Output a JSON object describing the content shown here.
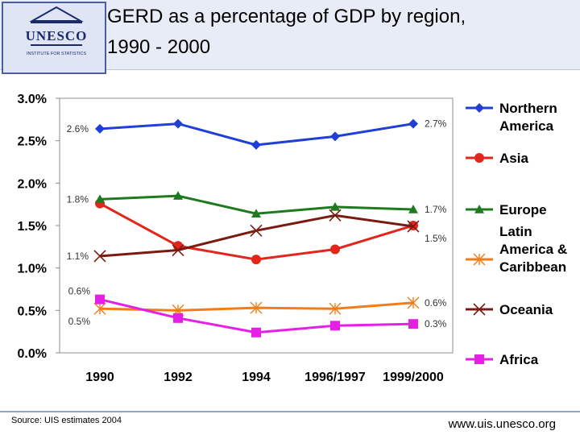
{
  "header": {
    "title_line1": "GERD as a percentage of GDP by region,",
    "title_line2": "1990 - 2000",
    "logo_text": "UNESCO",
    "logo_subtext": "INSTITUTE FOR STATISTICS"
  },
  "footer": {
    "source": "Source: UIS estimates 2004",
    "url": "www.uis.unesco.org"
  },
  "chart_data": {
    "type": "line",
    "title": "GERD as a percentage of GDP by region, 1990 - 2000",
    "xlabel": "",
    "ylabel": "",
    "categories": [
      "1990",
      "1992",
      "1994",
      "1996/1997",
      "1999/2000"
    ],
    "ylim": [
      0,
      3.0
    ],
    "yticks": [
      0,
      0.5,
      1.0,
      1.5,
      2.0,
      2.5,
      3.0
    ],
    "ytick_labels": [
      "0.0%",
      "0.5%",
      "1.0%",
      "1.5%",
      "2.0%",
      "2.5%",
      "3.0%"
    ],
    "grid": false,
    "legend": "right",
    "series": [
      {
        "name": "Northern America",
        "color": "#1f3fd6",
        "marker": "diamond",
        "values": [
          2.64,
          2.7,
          2.45,
          2.55,
          2.7
        ]
      },
      {
        "name": "Asia",
        "color": "#e2261c",
        "marker": "circle",
        "values": [
          1.76,
          1.26,
          1.1,
          1.22,
          1.5
        ]
      },
      {
        "name": "Europe",
        "color": "#1f7a1f",
        "marker": "triangle",
        "values": [
          1.81,
          1.85,
          1.64,
          1.72,
          1.69
        ]
      },
      {
        "name": "Latin America & Caribbean",
        "color": "#f07d1a",
        "marker": "star",
        "values": [
          0.52,
          0.5,
          0.53,
          0.52,
          0.59
        ]
      },
      {
        "name": "Oceania",
        "color": "#7a1a10",
        "marker": "x",
        "values": [
          1.14,
          1.21,
          1.44,
          1.62,
          1.49
        ]
      },
      {
        "name": "Africa",
        "color": "#e61fe6",
        "marker": "square",
        "values": [
          0.63,
          0.41,
          0.24,
          0.32,
          0.34
        ]
      }
    ],
    "annotations": [
      {
        "text": "2.6%",
        "series": "Northern America",
        "index": 0,
        "side": "left"
      },
      {
        "text": "2.7%",
        "series": "Northern America",
        "index": 4,
        "side": "right"
      },
      {
        "text": "1.8%",
        "series": "Europe",
        "index": 0,
        "side": "left"
      },
      {
        "text": "1.7%",
        "series": "Europe",
        "index": 4,
        "side": "right"
      },
      {
        "text": "1.1%",
        "series": "Oceania",
        "index": 0,
        "side": "left"
      },
      {
        "text": "1.5%",
        "series": "Asia",
        "index": 4,
        "side": "right-below"
      },
      {
        "text": "0.6%",
        "series": "Africa",
        "index": 0,
        "side": "left-above"
      },
      {
        "text": "0.5%",
        "series": "Latin America & Caribbean",
        "index": 0,
        "side": "left-below"
      },
      {
        "text": "0.6%",
        "series": "Latin America & Caribbean",
        "index": 4,
        "side": "right"
      },
      {
        "text": "0.3%",
        "series": "Africa",
        "index": 4,
        "side": "right"
      }
    ]
  }
}
